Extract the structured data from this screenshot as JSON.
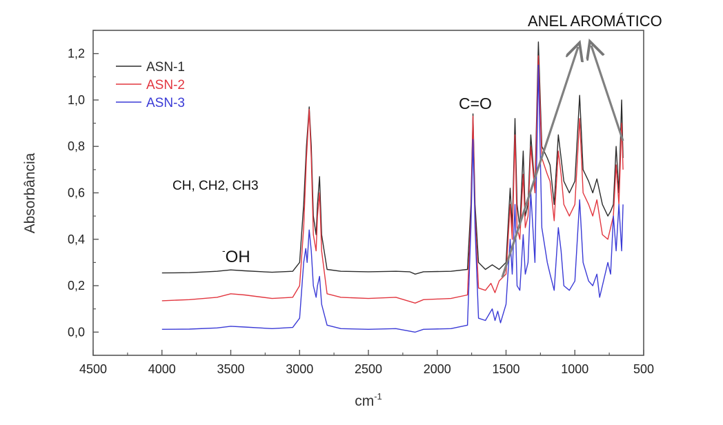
{
  "chart_data": {
    "type": "line",
    "xlabel": "cm",
    "xlabel_sup": "-1",
    "ylabel": "Absorbância",
    "xlim": [
      4500,
      500
    ],
    "ylim": [
      -0.1,
      1.3
    ],
    "x_ticks": [
      "4500",
      "4000",
      "3500",
      "3000",
      "2500",
      "2000",
      "1500",
      "1000",
      "500"
    ],
    "y_ticks": [
      "0,0",
      "0,2",
      "0,4",
      "0,6",
      "0,8",
      "1,0",
      "1,2"
    ],
    "grid": false,
    "legend_position": "top-left",
    "series": [
      {
        "name": "ASN-1",
        "color": "#2b2b2b",
        "points": [
          [
            4000,
            0.255
          ],
          [
            3800,
            0.256
          ],
          [
            3600,
            0.262
          ],
          [
            3500,
            0.268
          ],
          [
            3400,
            0.264
          ],
          [
            3200,
            0.258
          ],
          [
            3050,
            0.262
          ],
          [
            3000,
            0.3
          ],
          [
            2970,
            0.55
          ],
          [
            2950,
            0.8
          ],
          [
            2930,
            0.97
          ],
          [
            2915,
            0.8
          ],
          [
            2900,
            0.5
          ],
          [
            2880,
            0.42
          ],
          [
            2870,
            0.55
          ],
          [
            2855,
            0.67
          ],
          [
            2840,
            0.42
          ],
          [
            2800,
            0.27
          ],
          [
            2700,
            0.262
          ],
          [
            2500,
            0.26
          ],
          [
            2300,
            0.262
          ],
          [
            2200,
            0.26
          ],
          [
            2160,
            0.25
          ],
          [
            2100,
            0.26
          ],
          [
            1900,
            0.262
          ],
          [
            1780,
            0.27
          ],
          [
            1755,
            0.55
          ],
          [
            1740,
            0.94
          ],
          [
            1725,
            0.55
          ],
          [
            1700,
            0.3
          ],
          [
            1650,
            0.27
          ],
          [
            1600,
            0.29
          ],
          [
            1550,
            0.27
          ],
          [
            1500,
            0.3
          ],
          [
            1470,
            0.62
          ],
          [
            1455,
            0.45
          ],
          [
            1435,
            0.92
          ],
          [
            1420,
            0.55
          ],
          [
            1400,
            0.45
          ],
          [
            1375,
            0.78
          ],
          [
            1360,
            0.5
          ],
          [
            1340,
            0.55
          ],
          [
            1320,
            0.85
          ],
          [
            1290,
            0.62
          ],
          [
            1265,
            1.25
          ],
          [
            1240,
            0.8
          ],
          [
            1200,
            0.75
          ],
          [
            1180,
            0.72
          ],
          [
            1150,
            0.55
          ],
          [
            1120,
            0.85
          ],
          [
            1100,
            0.75
          ],
          [
            1080,
            0.65
          ],
          [
            1040,
            0.6
          ],
          [
            1000,
            0.65
          ],
          [
            965,
            1.02
          ],
          [
            940,
            0.7
          ],
          [
            900,
            0.65
          ],
          [
            870,
            0.6
          ],
          [
            840,
            0.66
          ],
          [
            800,
            0.55
          ],
          [
            760,
            0.5
          ],
          [
            740,
            0.52
          ],
          [
            720,
            0.55
          ],
          [
            700,
            0.8
          ],
          [
            680,
            0.6
          ],
          [
            660,
            1.0
          ],
          [
            650,
            0.75
          ]
        ]
      },
      {
        "name": "ASN-2",
        "color": "#e2363f",
        "points": [
          [
            4000,
            0.135
          ],
          [
            3800,
            0.14
          ],
          [
            3600,
            0.15
          ],
          [
            3500,
            0.165
          ],
          [
            3400,
            0.16
          ],
          [
            3200,
            0.145
          ],
          [
            3050,
            0.15
          ],
          [
            3000,
            0.2
          ],
          [
            2970,
            0.45
          ],
          [
            2950,
            0.75
          ],
          [
            2930,
            0.96
          ],
          [
            2915,
            0.75
          ],
          [
            2900,
            0.42
          ],
          [
            2880,
            0.35
          ],
          [
            2870,
            0.5
          ],
          [
            2855,
            0.6
          ],
          [
            2840,
            0.35
          ],
          [
            2800,
            0.165
          ],
          [
            2700,
            0.15
          ],
          [
            2500,
            0.145
          ],
          [
            2300,
            0.15
          ],
          [
            2160,
            0.125
          ],
          [
            2100,
            0.14
          ],
          [
            1900,
            0.145
          ],
          [
            1780,
            0.16
          ],
          [
            1755,
            0.5
          ],
          [
            1740,
            0.93
          ],
          [
            1725,
            0.5
          ],
          [
            1700,
            0.19
          ],
          [
            1650,
            0.18
          ],
          [
            1610,
            0.21
          ],
          [
            1580,
            0.17
          ],
          [
            1550,
            0.22
          ],
          [
            1500,
            0.25
          ],
          [
            1470,
            0.55
          ],
          [
            1455,
            0.4
          ],
          [
            1435,
            0.85
          ],
          [
            1420,
            0.45
          ],
          [
            1400,
            0.4
          ],
          [
            1375,
            0.68
          ],
          [
            1360,
            0.45
          ],
          [
            1340,
            0.5
          ],
          [
            1320,
            0.8
          ],
          [
            1290,
            0.6
          ],
          [
            1265,
            1.19
          ],
          [
            1240,
            0.75
          ],
          [
            1200,
            0.68
          ],
          [
            1180,
            0.65
          ],
          [
            1150,
            0.48
          ],
          [
            1120,
            0.78
          ],
          [
            1100,
            0.68
          ],
          [
            1080,
            0.55
          ],
          [
            1040,
            0.5
          ],
          [
            1000,
            0.55
          ],
          [
            965,
            0.92
          ],
          [
            940,
            0.6
          ],
          [
            900,
            0.55
          ],
          [
            870,
            0.5
          ],
          [
            840,
            0.57
          ],
          [
            800,
            0.42
          ],
          [
            760,
            0.4
          ],
          [
            740,
            0.45
          ],
          [
            720,
            0.5
          ],
          [
            700,
            0.72
          ],
          [
            680,
            0.55
          ],
          [
            660,
            0.9
          ],
          [
            650,
            0.7
          ]
        ]
      },
      {
        "name": "ASN-3",
        "color": "#3a3ad6",
        "points": [
          [
            4000,
            0.012
          ],
          [
            3800,
            0.013
          ],
          [
            3600,
            0.018
          ],
          [
            3500,
            0.025
          ],
          [
            3400,
            0.022
          ],
          [
            3200,
            0.015
          ],
          [
            3050,
            0.02
          ],
          [
            3000,
            0.06
          ],
          [
            2970,
            0.3
          ],
          [
            2955,
            0.36
          ],
          [
            2945,
            0.3
          ],
          [
            2930,
            0.44
          ],
          [
            2915,
            0.35
          ],
          [
            2900,
            0.2
          ],
          [
            2880,
            0.15
          ],
          [
            2870,
            0.2
          ],
          [
            2855,
            0.24
          ],
          [
            2840,
            0.12
          ],
          [
            2800,
            0.03
          ],
          [
            2700,
            0.015
          ],
          [
            2500,
            0.012
          ],
          [
            2300,
            0.015
          ],
          [
            2160,
            0.0
          ],
          [
            2100,
            0.012
          ],
          [
            1900,
            0.015
          ],
          [
            1780,
            0.03
          ],
          [
            1755,
            0.45
          ],
          [
            1740,
            0.83
          ],
          [
            1725,
            0.45
          ],
          [
            1700,
            0.06
          ],
          [
            1650,
            0.05
          ],
          [
            1600,
            0.1
          ],
          [
            1580,
            0.05
          ],
          [
            1560,
            0.09
          ],
          [
            1540,
            0.04
          ],
          [
            1520,
            0.08
          ],
          [
            1500,
            0.12
          ],
          [
            1470,
            0.4
          ],
          [
            1455,
            0.25
          ],
          [
            1435,
            0.55
          ],
          [
            1420,
            0.2
          ],
          [
            1400,
            0.18
          ],
          [
            1375,
            0.42
          ],
          [
            1360,
            0.25
          ],
          [
            1340,
            0.3
          ],
          [
            1320,
            0.6
          ],
          [
            1290,
            0.3
          ],
          [
            1265,
            1.15
          ],
          [
            1240,
            0.45
          ],
          [
            1200,
            0.3
          ],
          [
            1180,
            0.25
          ],
          [
            1150,
            0.18
          ],
          [
            1120,
            0.45
          ],
          [
            1100,
            0.35
          ],
          [
            1080,
            0.2
          ],
          [
            1040,
            0.18
          ],
          [
            1000,
            0.22
          ],
          [
            965,
            0.57
          ],
          [
            940,
            0.3
          ],
          [
            900,
            0.22
          ],
          [
            870,
            0.2
          ],
          [
            840,
            0.25
          ],
          [
            820,
            0.15
          ],
          [
            800,
            0.2
          ],
          [
            760,
            0.3
          ],
          [
            740,
            0.25
          ],
          [
            720,
            0.5
          ],
          [
            700,
            0.35
          ],
          [
            680,
            0.55
          ],
          [
            660,
            0.35
          ],
          [
            650,
            0.55
          ]
        ]
      }
    ],
    "annotations": [
      {
        "text": "ANEL AROMÁTICO"
      },
      {
        "text": "C=O"
      },
      {
        "text": "CH, CH2, CH3"
      },
      {
        "text": "OH",
        "sup": "-"
      }
    ]
  }
}
